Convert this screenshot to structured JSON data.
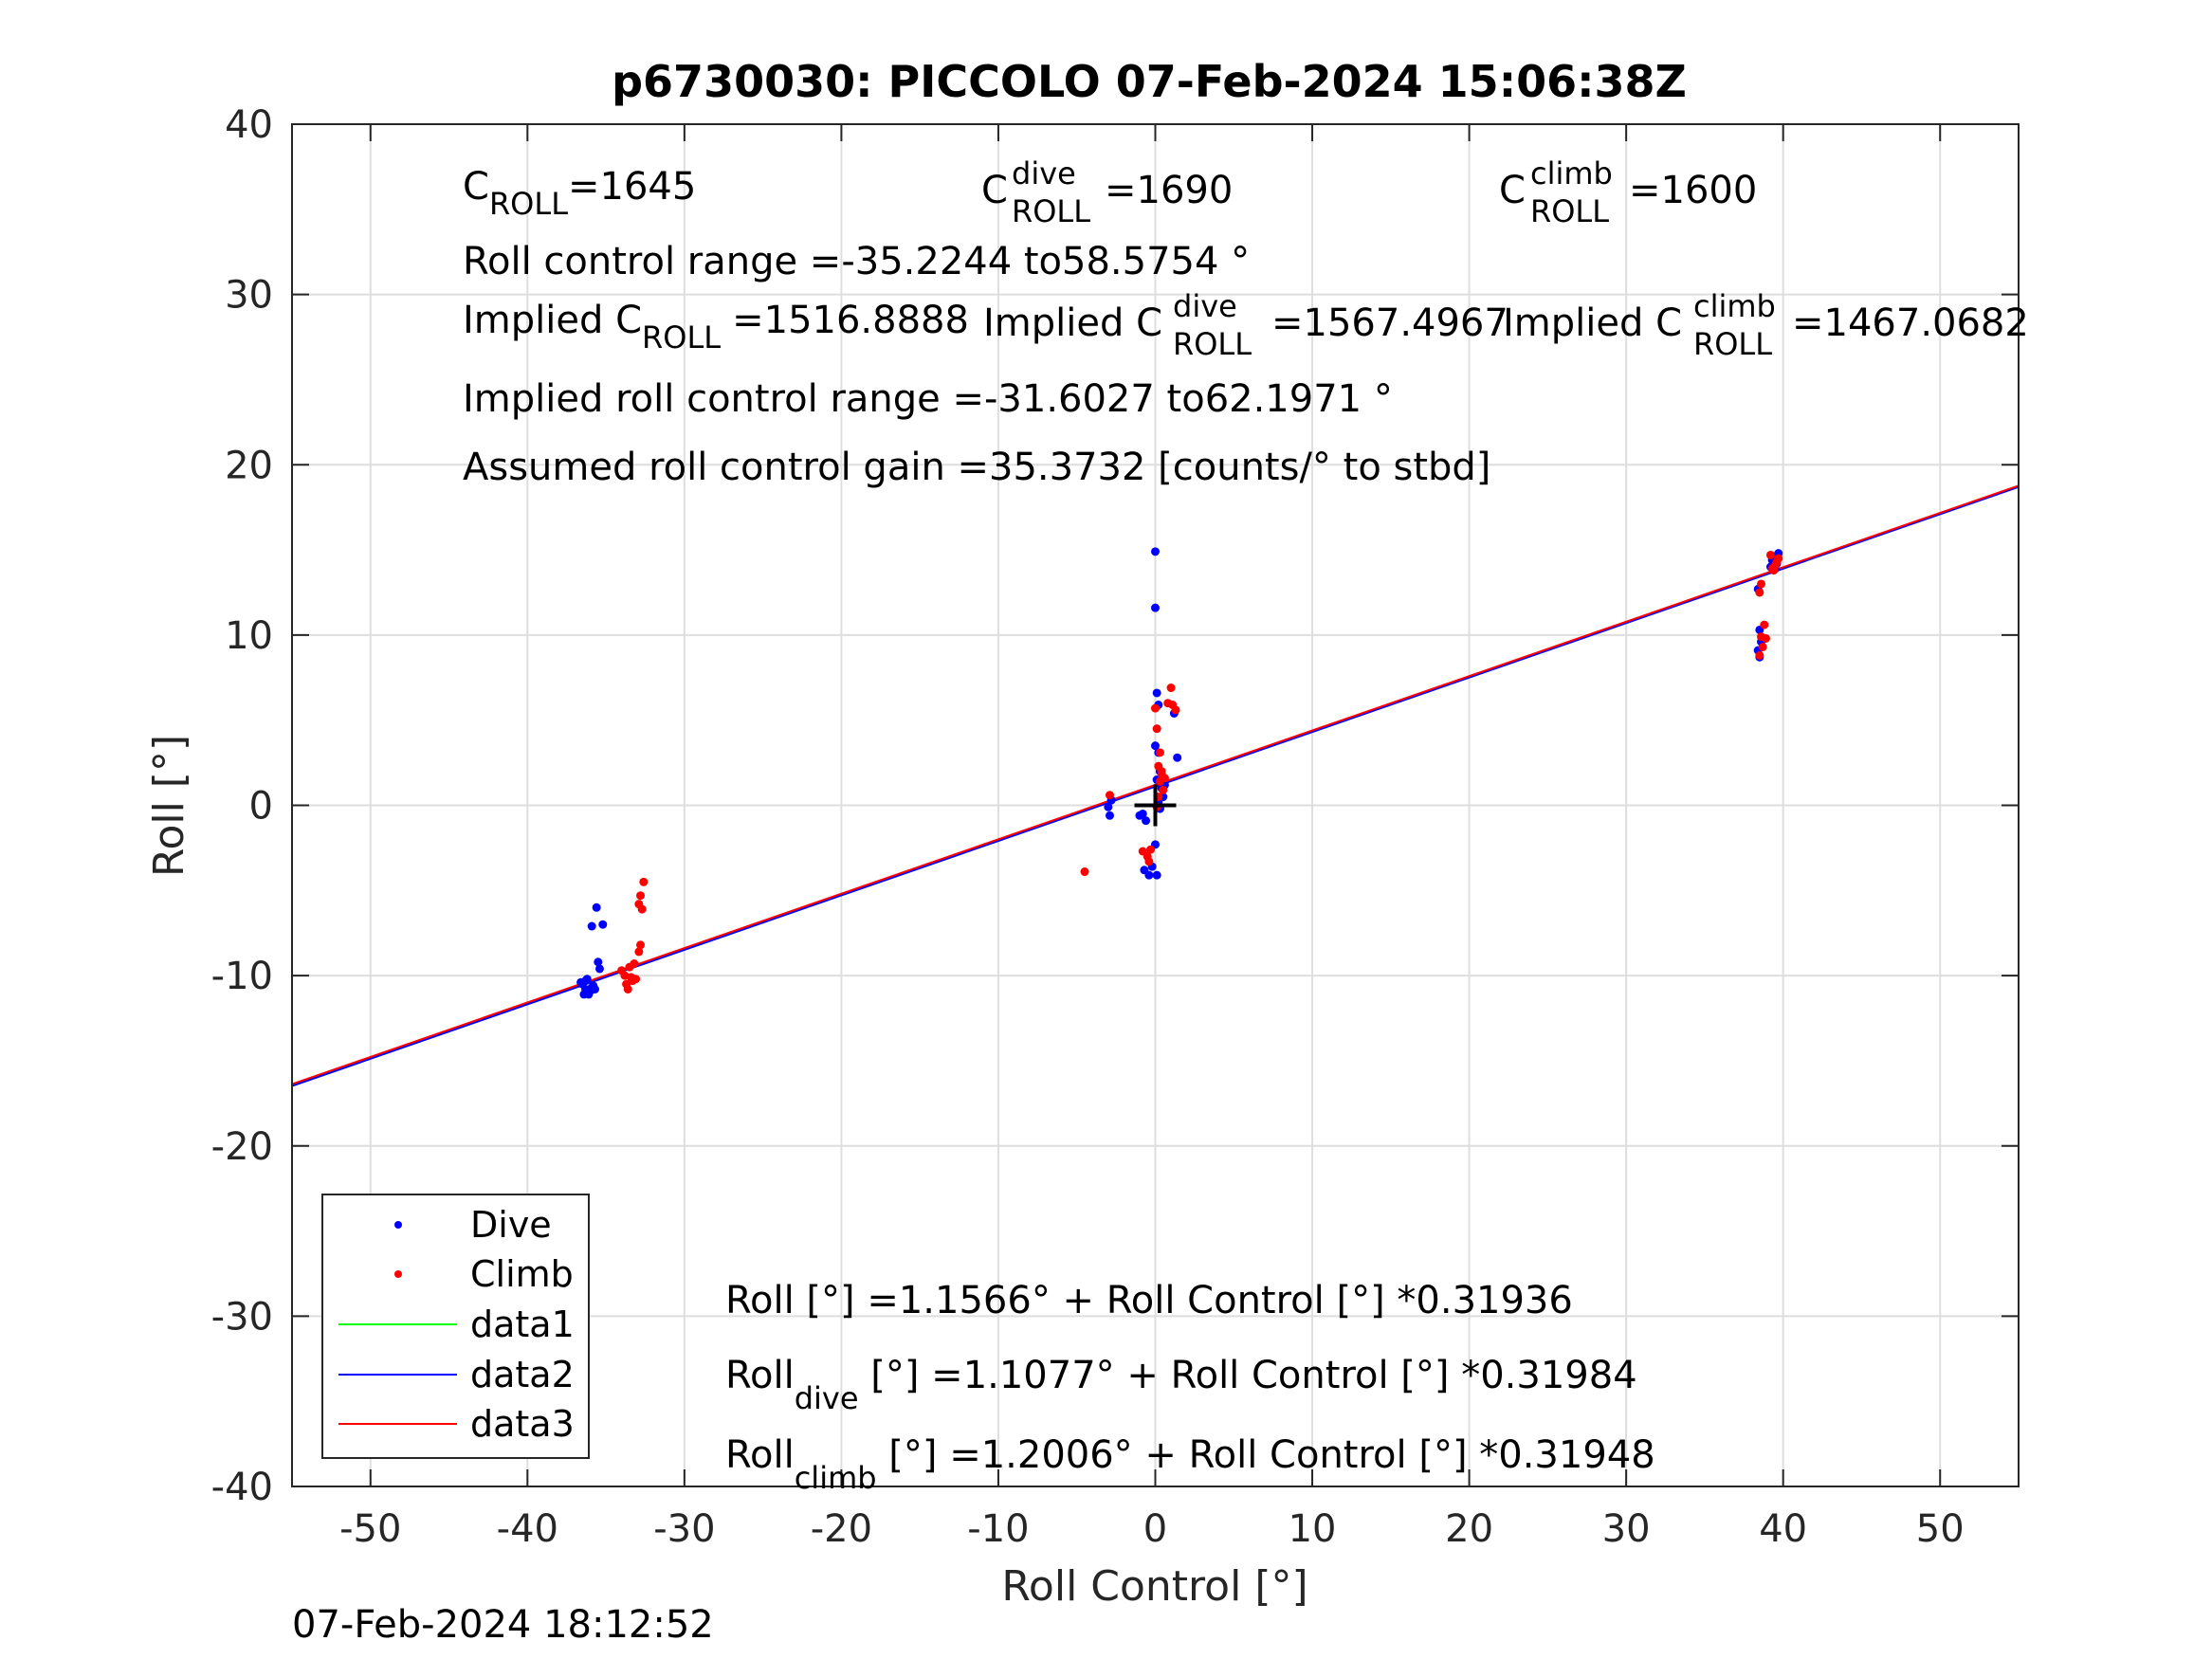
{
  "chart_data": {
    "type": "scatter",
    "title": "p6730030: PICCOLO 07-Feb-2024 15:06:38Z",
    "xlabel": "Roll Control [°]",
    "ylabel": "Roll [°]",
    "xlim": [
      -55,
      55
    ],
    "ylim": [
      -40,
      40
    ],
    "xticks": [
      -50,
      -40,
      -30,
      -20,
      -10,
      0,
      10,
      20,
      30,
      40,
      50
    ],
    "yticks": [
      -40,
      -30,
      -20,
      -10,
      0,
      10,
      20,
      30,
      40
    ],
    "grid": true,
    "legend_position": "bottom-left",
    "series": [
      {
        "name": "Dive",
        "kind": "points",
        "color": "#0000ff",
        "points": [
          [
            -36.5,
            -10.5
          ],
          [
            -36.3,
            -10.8
          ],
          [
            -36.1,
            -11.0
          ],
          [
            -35.9,
            -10.7
          ],
          [
            -36.4,
            -11.1
          ],
          [
            -36.2,
            -10.2
          ],
          [
            -35.8,
            -10.6
          ],
          [
            -36.0,
            -10.9
          ],
          [
            -36.6,
            -10.4
          ],
          [
            -35.7,
            -10.8
          ],
          [
            -36.3,
            -10.3
          ],
          [
            -35.5,
            -9.2
          ],
          [
            -35.4,
            -9.6
          ],
          [
            -35.2,
            -7.0
          ],
          [
            -35.6,
            -6.0
          ],
          [
            -35.9,
            -7.1
          ],
          [
            -36.1,
            -11.1
          ],
          [
            -2.8,
            0.3
          ],
          [
            -2.9,
            -0.6
          ],
          [
            -3.0,
            -0.1
          ],
          [
            -1.0,
            -0.6
          ],
          [
            -0.6,
            -0.9
          ],
          [
            -0.8,
            -0.5
          ],
          [
            -0.4,
            -4.1
          ],
          [
            -0.7,
            -3.8
          ],
          [
            0.1,
            -4.1
          ],
          [
            -0.2,
            -3.6
          ],
          [
            0.0,
            -2.3
          ],
          [
            0.0,
            14.9
          ],
          [
            0.0,
            11.6
          ],
          [
            0.1,
            6.6
          ],
          [
            0.2,
            5.9
          ],
          [
            0.0,
            3.5
          ],
          [
            0.2,
            3.1
          ],
          [
            0.3,
            2.0
          ],
          [
            0.1,
            1.5
          ],
          [
            0.4,
            1.0
          ],
          [
            0.5,
            0.5
          ],
          [
            0.6,
            1.2
          ],
          [
            0.2,
            0.2
          ],
          [
            0.3,
            -0.2
          ],
          [
            1.4,
            2.8
          ],
          [
            1.2,
            5.4
          ],
          [
            39.4,
            14.6
          ],
          [
            39.6,
            14.2
          ],
          [
            39.2,
            14.0
          ],
          [
            39.5,
            13.9
          ],
          [
            39.7,
            14.8
          ],
          [
            39.3,
            14.4
          ],
          [
            38.4,
            12.7
          ],
          [
            38.5,
            10.3
          ],
          [
            38.6,
            9.6
          ],
          [
            38.4,
            9.1
          ],
          [
            38.5,
            8.7
          ]
        ]
      },
      {
        "name": "Climb",
        "kind": "points",
        "color": "#ff0000",
        "points": [
          [
            -33.8,
            -10.0
          ],
          [
            -33.5,
            -9.5
          ],
          [
            -33.3,
            -10.3
          ],
          [
            -33.6,
            -10.8
          ],
          [
            -34.0,
            -9.7
          ],
          [
            -33.2,
            -9.3
          ],
          [
            -33.7,
            -10.5
          ],
          [
            -33.4,
            -10.1
          ],
          [
            -32.8,
            -8.2
          ],
          [
            -32.9,
            -8.6
          ],
          [
            -32.6,
            -4.5
          ],
          [
            -32.8,
            -5.3
          ],
          [
            -32.9,
            -5.8
          ],
          [
            -32.7,
            -6.1
          ],
          [
            -33.1,
            -10.2
          ],
          [
            -4.5,
            -3.9
          ],
          [
            -2.9,
            0.6
          ],
          [
            -0.5,
            -3.0
          ],
          [
            -0.3,
            -2.6
          ],
          [
            -0.4,
            -3.3
          ],
          [
            -0.8,
            -2.7
          ],
          [
            0.0,
            5.7
          ],
          [
            0.1,
            4.5
          ],
          [
            0.3,
            3.1
          ],
          [
            0.2,
            2.3
          ],
          [
            0.4,
            1.8
          ],
          [
            0.3,
            1.4
          ],
          [
            0.5,
            0.9
          ],
          [
            0.2,
            0.5
          ],
          [
            0.1,
            -0.1
          ],
          [
            0.6,
            1.6
          ],
          [
            0.4,
            2.0
          ],
          [
            0.8,
            6.0
          ],
          [
            1.0,
            6.9
          ],
          [
            1.1,
            5.9
          ],
          [
            1.3,
            5.6
          ],
          [
            39.6,
            14.3
          ],
          [
            39.4,
            13.8
          ],
          [
            39.2,
            14.7
          ],
          [
            39.5,
            14.1
          ],
          [
            39.7,
            14.5
          ],
          [
            39.3,
            13.9
          ],
          [
            38.6,
            13.0
          ],
          [
            38.5,
            12.5
          ],
          [
            38.8,
            10.6
          ],
          [
            38.9,
            9.8
          ],
          [
            38.6,
            9.9
          ],
          [
            38.7,
            9.3
          ],
          [
            38.5,
            8.8
          ]
        ]
      },
      {
        "name": "data1",
        "kind": "line",
        "color": "#00ff00",
        "intercept": 1.1566,
        "slope": 0.31936
      },
      {
        "name": "data2",
        "kind": "line",
        "color": "#0000ff",
        "intercept": 1.1077,
        "slope": 0.31984
      },
      {
        "name": "data3",
        "kind": "line",
        "color": "#ff0000",
        "intercept": 1.2006,
        "slope": 0.31948
      }
    ],
    "marker": {
      "x": 0,
      "y": 0,
      "symbol": "+"
    },
    "annotations": {
      "c_roll": {
        "main": "C",
        "sub": "ROLL",
        "rest": "=1645"
      },
      "c_roll_dive": {
        "main": "C",
        "sup": "dive",
        "sub": "ROLL",
        "rest": "=1690"
      },
      "c_roll_climb": {
        "main": "C",
        "sup": "climb",
        "sub": "ROLL",
        "rest": "=1600"
      },
      "roll_range": "Roll control range =-35.2244 to58.5754 °",
      "implied_c_roll": {
        "main": "Implied C",
        "sub": "ROLL",
        "rest": "=1516.8888"
      },
      "implied_c_roll_dive": {
        "main": "Implied C",
        "sup": "dive",
        "sub": "ROLL",
        "rest": "=1567.4967"
      },
      "implied_c_roll_climb": {
        "main": "Implied C",
        "sup": "climb",
        "sub": "ROLL",
        "rest": "=1467.0682"
      },
      "implied_range": "Implied roll control range =-31.6027 to62.1971 °",
      "gain": "Assumed roll control gain =35.3732 [counts/° to stbd]",
      "fit_all": "Roll [°] =1.1566° + Roll Control [°] *0.31936",
      "fit_dive": {
        "main": "Roll",
        "sub": "dive",
        "rest": " [°] =1.1077° + Roll Control [°] *0.31984"
      },
      "fit_climb": {
        "main": "Roll",
        "sub": "climb",
        "rest": " [°] =1.2006° + Roll Control [°] *0.31948"
      }
    }
  },
  "footer_timestamp": "07-Feb-2024 18:12:52"
}
